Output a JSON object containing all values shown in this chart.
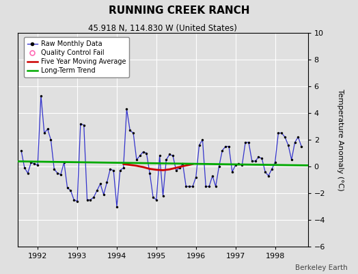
{
  "title": "RUNNING CREEK RANCH",
  "subtitle": "45.918 N, 114.830 W (United States)",
  "ylabel": "Temperature Anomaly (°C)",
  "attribution": "Berkeley Earth",
  "ylim": [
    -6,
    10
  ],
  "yticks": [
    -6,
    -4,
    -2,
    0,
    2,
    4,
    6,
    8,
    10
  ],
  "xlim_start": 1991.5,
  "xlim_end": 1998.83,
  "xticks": [
    1992,
    1993,
    1994,
    1995,
    1996,
    1997,
    1998
  ],
  "bg_color": "#e0e0e0",
  "grid_color": "#ffffff",
  "raw_color": "#3333cc",
  "moving_avg_color": "#cc0000",
  "trend_color": "#00aa00",
  "qc_color": "#ff69b4",
  "raw_monthly": {
    "x": [
      1991.583,
      1991.667,
      1991.75,
      1991.833,
      1991.917,
      1992.0,
      1992.083,
      1992.167,
      1992.25,
      1992.333,
      1992.417,
      1992.5,
      1992.583,
      1992.667,
      1992.75,
      1992.833,
      1992.917,
      1993.0,
      1993.083,
      1993.167,
      1993.25,
      1993.333,
      1993.417,
      1993.5,
      1993.583,
      1993.667,
      1993.75,
      1993.833,
      1993.917,
      1994.0,
      1994.083,
      1994.167,
      1994.25,
      1994.333,
      1994.417,
      1994.5,
      1994.583,
      1994.667,
      1994.75,
      1994.833,
      1994.917,
      1995.0,
      1995.083,
      1995.167,
      1995.25,
      1995.333,
      1995.417,
      1995.5,
      1995.583,
      1995.667,
      1995.75,
      1995.833,
      1995.917,
      1996.0,
      1996.083,
      1996.167,
      1996.25,
      1996.333,
      1996.417,
      1996.5,
      1996.583,
      1996.667,
      1996.75,
      1996.833,
      1996.917,
      1997.0,
      1997.083,
      1997.167,
      1997.25,
      1997.333,
      1997.417,
      1997.5,
      1997.583,
      1997.667,
      1997.75,
      1997.833,
      1997.917,
      1998.0,
      1998.083,
      1998.167,
      1998.25,
      1998.333,
      1998.417,
      1998.5,
      1998.583,
      1998.667
    ],
    "y": [
      1.2,
      -0.1,
      -0.5,
      0.3,
      0.2,
      0.1,
      5.3,
      2.5,
      2.8,
      2.0,
      -0.2,
      -0.5,
      -0.6,
      0.3,
      -1.6,
      -1.8,
      -2.5,
      -2.6,
      3.2,
      3.1,
      -2.5,
      -2.5,
      -2.3,
      -1.8,
      -1.3,
      -2.1,
      -1.2,
      -0.2,
      -0.3,
      -3.0,
      -0.3,
      -0.1,
      4.3,
      2.7,
      2.5,
      0.5,
      0.8,
      1.1,
      1.0,
      -0.5,
      -2.3,
      -2.5,
      0.8,
      -2.2,
      0.5,
      0.9,
      0.8,
      -0.3,
      -0.1,
      0.2,
      -1.5,
      -1.5,
      -1.5,
      -0.8,
      1.6,
      2.0,
      -1.5,
      -1.5,
      -0.7,
      -1.5,
      0.0,
      1.2,
      1.5,
      1.5,
      -0.4,
      0.1,
      0.2,
      0.1,
      1.8,
      1.8,
      0.4,
      0.4,
      0.7,
      0.6,
      -0.4,
      -0.7,
      -0.2,
      0.3,
      2.5,
      2.5,
      2.2,
      1.6,
      0.5,
      1.8,
      2.2,
      1.5
    ]
  },
  "moving_avg": {
    "x": [
      1994.17,
      1994.33,
      1994.5,
      1994.67,
      1994.83,
      1995.0,
      1995.17,
      1995.33,
      1995.5,
      1995.67,
      1995.83,
      1995.917
    ],
    "y": [
      0.18,
      0.12,
      0.05,
      -0.05,
      -0.18,
      -0.25,
      -0.28,
      -0.22,
      -0.1,
      0.02,
      0.12,
      0.18
    ]
  },
  "trend": {
    "x": [
      1991.5,
      1998.83
    ],
    "y": [
      0.38,
      0.08
    ]
  }
}
